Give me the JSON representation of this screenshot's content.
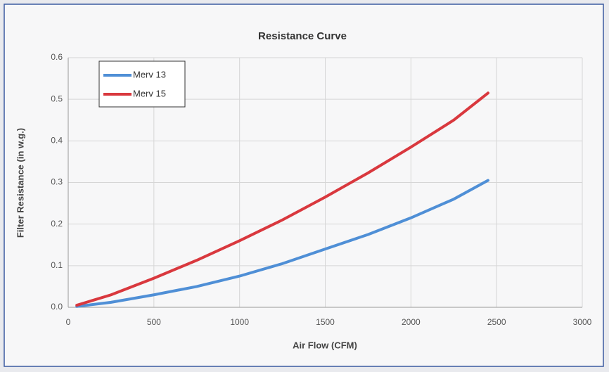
{
  "chart_data": {
    "type": "line",
    "title": "Resistance Curve",
    "x_label": "Air Flow (CFM)",
    "y_label": "Filter Resistance (in w.g.)",
    "x": [
      50,
      250,
      500,
      750,
      1000,
      1250,
      1500,
      1750,
      2000,
      2250,
      2450
    ],
    "series": [
      {
        "name": "Merv 13",
        "color": "#4f8fd6",
        "values": [
          0.002,
          0.012,
          0.03,
          0.05,
          0.075,
          0.105,
          0.14,
          0.175,
          0.215,
          0.26,
          0.305
        ]
      },
      {
        "name": "Merv 15",
        "color": "#d9383e",
        "values": [
          0.005,
          0.03,
          0.07,
          0.113,
          0.16,
          0.21,
          0.265,
          0.323,
          0.385,
          0.45,
          0.515
        ]
      }
    ],
    "xlim": [
      0,
      3000
    ],
    "xticks": [
      0,
      500,
      1000,
      1500,
      2000,
      2500,
      3000
    ],
    "ylim": [
      0,
      0.6
    ],
    "yticks": [
      {
        "value": 0,
        "label": "0.0"
      },
      0.1,
      0.2,
      0.3,
      0.4,
      0.5,
      0.6
    ],
    "grid": true,
    "legend": "top-left"
  }
}
